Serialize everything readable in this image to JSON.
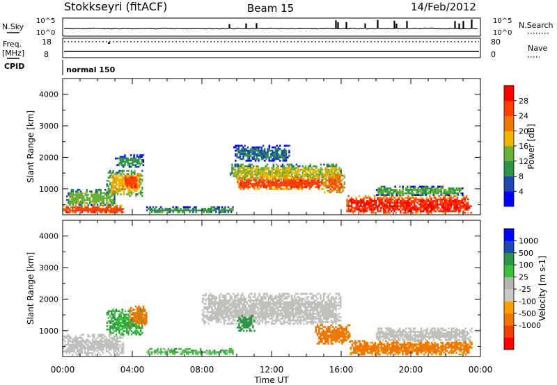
{
  "header": {
    "station": "Stokkseyri (fitACF)",
    "beam": "Beam 15",
    "date": "14/Feb/2012"
  },
  "colors": {
    "power_scale": [
      "#0000ff",
      "#1e48b4",
      "#2e9446",
      "#68b038",
      "#f0b400",
      "#f07800",
      "#ff4000",
      "#ff0000"
    ],
    "velocity_scale": [
      "#ff0000",
      "#f04000",
      "#f07800",
      "#ffa000",
      "#c8c8c4",
      "#b4b4b0",
      "#3cc03c",
      "#2e9446",
      "#1e48b4",
      "#0000ff"
    ],
    "grey_scatter": "#c0c0bc"
  },
  "meta_panels": {
    "nsky_label": "N.Sky",
    "nsky_ticks": [
      "10^5",
      "10^0"
    ],
    "nsearch_label": "N.Search",
    "nsearch_ticks": [
      "10^5",
      "10^0"
    ],
    "freq_label": "Freq.",
    "freq_unit": "[MHz]",
    "freq_ticks": [
      "18",
      "8"
    ],
    "nave_label": "Nave",
    "nave_ticks": [
      "80",
      "0"
    ],
    "cpid_label": "CPID",
    "cpid_value": "normal 150"
  },
  "chart_data": [
    {
      "type": "heatmap",
      "name": "power",
      "ylabel": "Slant Range [km]",
      "yticks": [
        "1000",
        "2000",
        "3000",
        "4000"
      ],
      "ylim": [
        180,
        4500
      ],
      "xlim": [
        0,
        24
      ],
      "colorbar_label": "Power [dB]",
      "colorbar_ticks": [
        "4",
        "8",
        "12",
        "16",
        "20",
        "24",
        "28"
      ],
      "regions": [
        {
          "t": [
            0.0,
            3.5
          ],
          "r": [
            250,
            500
          ],
          "v": 26
        },
        {
          "t": [
            0.2,
            3.0
          ],
          "r": [
            500,
            1000
          ],
          "v": 14
        },
        {
          "t": [
            2.5,
            4.6
          ],
          "r": [
            800,
            1600
          ],
          "v": 18
        },
        {
          "t": [
            3.4,
            4.4
          ],
          "r": [
            1000,
            1500
          ],
          "v": 26
        },
        {
          "t": [
            3.0,
            4.6
          ],
          "r": [
            1700,
            2100
          ],
          "v": 10
        },
        {
          "t": [
            4.8,
            9.8
          ],
          "r": [
            250,
            450
          ],
          "v": 10
        },
        {
          "t": [
            9.6,
            16.0
          ],
          "r": [
            1300,
            1800
          ],
          "v": 16
        },
        {
          "t": [
            10.0,
            15.0
          ],
          "r": [
            1000,
            1400
          ],
          "v": 26
        },
        {
          "t": [
            9.8,
            13.0
          ],
          "r": [
            1900,
            2400
          ],
          "v": 8
        },
        {
          "t": [
            15.0,
            16.2
          ],
          "r": [
            900,
            1500
          ],
          "v": 24
        },
        {
          "t": [
            16.2,
            23.5
          ],
          "r": [
            250,
            800
          ],
          "v": 28
        },
        {
          "t": [
            18.0,
            23.0
          ],
          "r": [
            800,
            1100
          ],
          "v": 12
        }
      ]
    },
    {
      "type": "heatmap",
      "name": "velocity",
      "xlabel": "Time UT",
      "xticks": [
        "00:00",
        "04:00",
        "08:00",
        "12:00",
        "16:00",
        "20:00",
        "00:00"
      ],
      "ylabel": "Slant Range [km]",
      "yticks": [
        "1000",
        "2000",
        "3000",
        "4000"
      ],
      "ylim": [
        180,
        4500
      ],
      "xlim": [
        0,
        24
      ],
      "colorbar_label": "Velocity [m s-1]",
      "colorbar_ticks": [
        "1000",
        "500",
        "100",
        "25",
        "-25",
        "-100",
        "-500",
        "-1000"
      ],
      "regions": [
        {
          "t": [
            0.0,
            3.5
          ],
          "r": [
            250,
            900
          ],
          "v": 0
        },
        {
          "t": [
            2.5,
            4.6
          ],
          "r": [
            900,
            1700
          ],
          "v": 100
        },
        {
          "t": [
            3.8,
            4.8
          ],
          "r": [
            1200,
            1800
          ],
          "v": -200
        },
        {
          "t": [
            4.8,
            9.8
          ],
          "r": [
            250,
            450
          ],
          "v": 50
        },
        {
          "t": [
            8.0,
            16.0
          ],
          "r": [
            1200,
            2200
          ],
          "v": 0
        },
        {
          "t": [
            10.0,
            11.0
          ],
          "r": [
            1000,
            1500
          ],
          "v": 200
        },
        {
          "t": [
            14.5,
            16.5
          ],
          "r": [
            600,
            1200
          ],
          "v": -300
        },
        {
          "t": [
            16.5,
            23.5
          ],
          "r": [
            250,
            700
          ],
          "v": -150
        },
        {
          "t": [
            18.0,
            23.5
          ],
          "r": [
            700,
            1100
          ],
          "v": 0
        }
      ]
    }
  ]
}
